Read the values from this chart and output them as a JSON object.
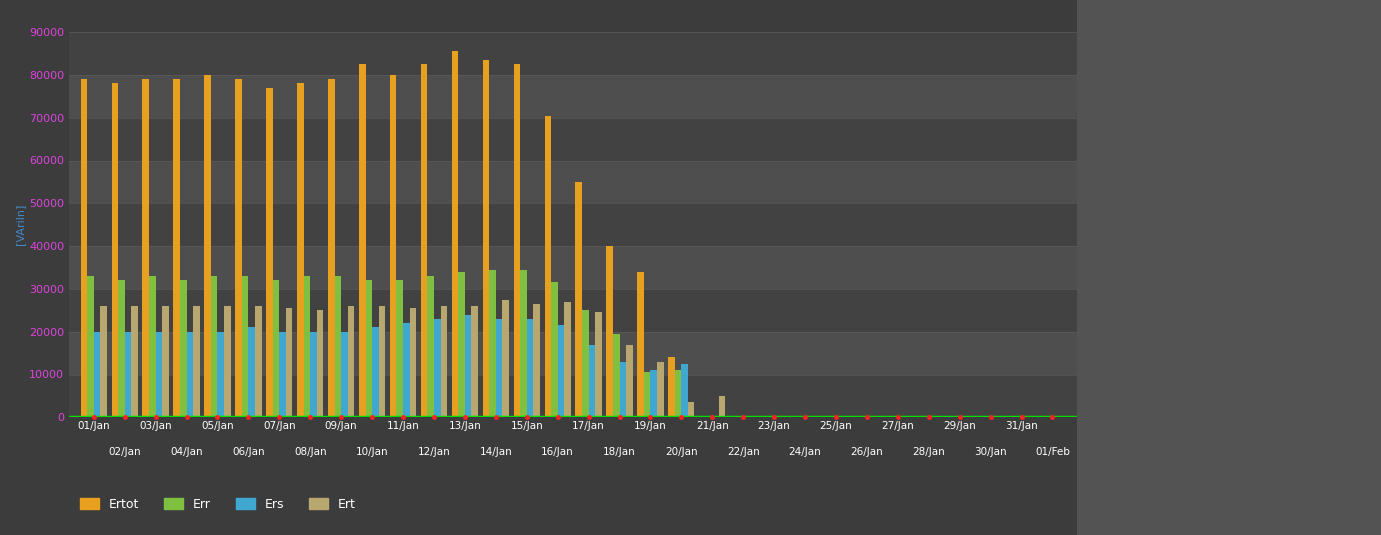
{
  "fig_bg": "#3c3c3c",
  "plot_bg_dark": "#424242",
  "plot_bg_light": "#4e4e4e",
  "grid_color": "#5a5a5a",
  "bar_colors": [
    "#e8a020",
    "#80c040",
    "#40a8d0",
    "#b8a870"
  ],
  "series_names": [
    "Ertot",
    "Err",
    "Ers",
    "Ert"
  ],
  "ylim": [
    0,
    90000
  ],
  "yticks": [
    0,
    10000,
    20000,
    30000,
    40000,
    50000,
    60000,
    70000,
    80000,
    90000
  ],
  "ylabel": "[VAriln]",
  "green_line_color": "#00dd00",
  "red_dot_color": "#ff2222",
  "tick_label_color": "#dd44dd",
  "xlabel_color": "#ffffff",
  "ylabel_color": "#4488cc",
  "dates_odd": [
    "01/Jan",
    "03/Jan",
    "05/Jan",
    "07/Jan",
    "09/Jan",
    "11/Jan",
    "13/Jan",
    "15/Jan",
    "17/Jan",
    "19/Jan",
    "21/Jan",
    "23/Jan",
    "25/Jan",
    "27/Jan",
    "29/Jan",
    "31/Jan"
  ],
  "dates_even": [
    "02/Jan",
    "04/Jan",
    "06/Jan",
    "08/Jan",
    "10/Jan",
    "12/Jan",
    "14/Jan",
    "16/Jan",
    "18/Jan",
    "20/Jan",
    "22/Jan",
    "24/Jan",
    "26/Jan",
    "28/Jan",
    "30/Jan",
    "01/Feb"
  ],
  "Ertot": [
    79000,
    78000,
    79000,
    79000,
    80000,
    79000,
    77000,
    78000,
    79000,
    82500,
    80000,
    82500,
    85500,
    83500,
    82500,
    70500,
    55000,
    40000,
    34000,
    14000,
    0,
    0,
    0,
    0,
    0,
    0,
    0,
    0,
    0,
    0,
    0,
    0
  ],
  "Err": [
    33000,
    32000,
    33000,
    32000,
    33000,
    33000,
    32000,
    33000,
    33000,
    32000,
    32000,
    33000,
    34000,
    34500,
    34500,
    31500,
    25000,
    19500,
    10500,
    11000,
    0,
    0,
    0,
    0,
    0,
    0,
    0,
    0,
    0,
    0,
    0,
    0
  ],
  "Ers": [
    20000,
    20000,
    20000,
    20000,
    20000,
    21000,
    20000,
    20000,
    20000,
    21000,
    22000,
    23000,
    24000,
    23000,
    23000,
    21500,
    17000,
    13000,
    11000,
    12500,
    0,
    0,
    0,
    0,
    0,
    0,
    0,
    0,
    0,
    0,
    0,
    0
  ],
  "Ert": [
    26000,
    26000,
    26000,
    26000,
    26000,
    26000,
    25500,
    25000,
    26000,
    26000,
    25500,
    26000,
    26000,
    27500,
    26500,
    27000,
    24500,
    17000,
    13000,
    3500,
    5000,
    0,
    0,
    0,
    0,
    0,
    0,
    0,
    0,
    0,
    0,
    0
  ]
}
